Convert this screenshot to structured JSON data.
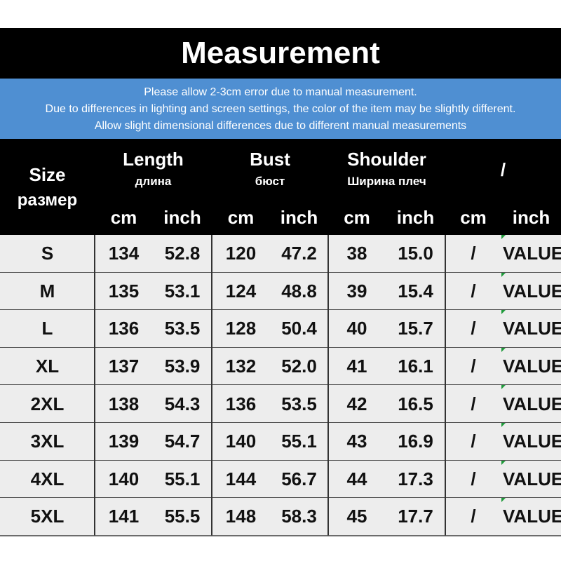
{
  "header": {
    "title": "Measurement"
  },
  "notice": [
    "Please allow 2-3cm error due to manual measurement.",
    "Due to differences in lighting and screen settings, the color of the item may be slightly different.",
    "Allow slight dimensional differences due to different manual measurements"
  ],
  "table": {
    "size_label": "Size",
    "size_label_ru": "размер",
    "groups": [
      {
        "name": "Length",
        "name_ru": "длина",
        "units": [
          "cm",
          "inch"
        ]
      },
      {
        "name": "Bust",
        "name_ru": "бюст",
        "units": [
          "cm",
          "inch"
        ]
      },
      {
        "name": "Shoulder",
        "name_ru": "Ширина плеч",
        "units": [
          "cm",
          "inch"
        ]
      },
      {
        "name": "/",
        "units": [
          "cm",
          "inch"
        ]
      }
    ],
    "rows": [
      [
        "S",
        "134",
        "52.8",
        "120",
        "47.2",
        "38",
        "15.0",
        "/",
        "VALUE"
      ],
      [
        "M",
        "135",
        "53.1",
        "124",
        "48.8",
        "39",
        "15.4",
        "/",
        "VALUE"
      ],
      [
        "L",
        "136",
        "53.5",
        "128",
        "50.4",
        "40",
        "15.7",
        "/",
        "VALUE"
      ],
      [
        "XL",
        "137",
        "53.9",
        "132",
        "52.0",
        "41",
        "16.1",
        "/",
        "VALUE"
      ],
      [
        "2XL",
        "138",
        "54.3",
        "136",
        "53.5",
        "42",
        "16.5",
        "/",
        "VALUE"
      ],
      [
        "3XL",
        "139",
        "54.7",
        "140",
        "55.1",
        "43",
        "16.9",
        "/",
        "VALUE"
      ],
      [
        "4XL",
        "140",
        "55.1",
        "144",
        "56.7",
        "44",
        "17.3",
        "/",
        "VALUE"
      ],
      [
        "5XL",
        "141",
        "55.5",
        "148",
        "58.3",
        "45",
        "17.7",
        "/",
        "VALUE"
      ]
    ]
  }
}
